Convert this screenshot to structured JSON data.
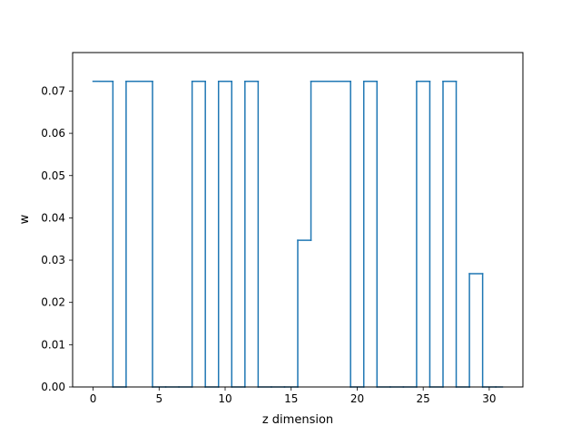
{
  "chart_data": {
    "type": "line",
    "step": "mid",
    "xlabel": "z dimension",
    "ylabel": "w",
    "xlim": [
      -1.55,
      32.55
    ],
    "ylim": [
      0.0,
      0.0791
    ],
    "xticks": [
      0,
      5,
      10,
      15,
      20,
      25,
      30
    ],
    "yticks": [
      0.0,
      0.01,
      0.02,
      0.03,
      0.04,
      0.05,
      0.06,
      0.07
    ],
    "ytick_labels": [
      "0.00",
      "0.01",
      "0.02",
      "0.03",
      "0.04",
      "0.05",
      "0.06",
      "0.07"
    ],
    "grid": false,
    "series": [
      {
        "color": "#1f77b4",
        "x": [
          0,
          1,
          2,
          3,
          4,
          5,
          6,
          7,
          8,
          9,
          10,
          11,
          12,
          13,
          14,
          15,
          16,
          17,
          18,
          19,
          20,
          21,
          22,
          23,
          24,
          25,
          26,
          27,
          28,
          29,
          30,
          31
        ],
        "y": [
          0.0723,
          0.0723,
          0,
          0.0723,
          0.0723,
          0,
          0,
          0,
          0.0723,
          0,
          0.0723,
          0,
          0.0723,
          0,
          0,
          0,
          0.0347,
          0.0723,
          0.0723,
          0.0723,
          0,
          0.0723,
          0,
          0,
          0,
          0.0723,
          0,
          0.0723,
          0,
          0.0268,
          0,
          0
        ]
      }
    ]
  }
}
